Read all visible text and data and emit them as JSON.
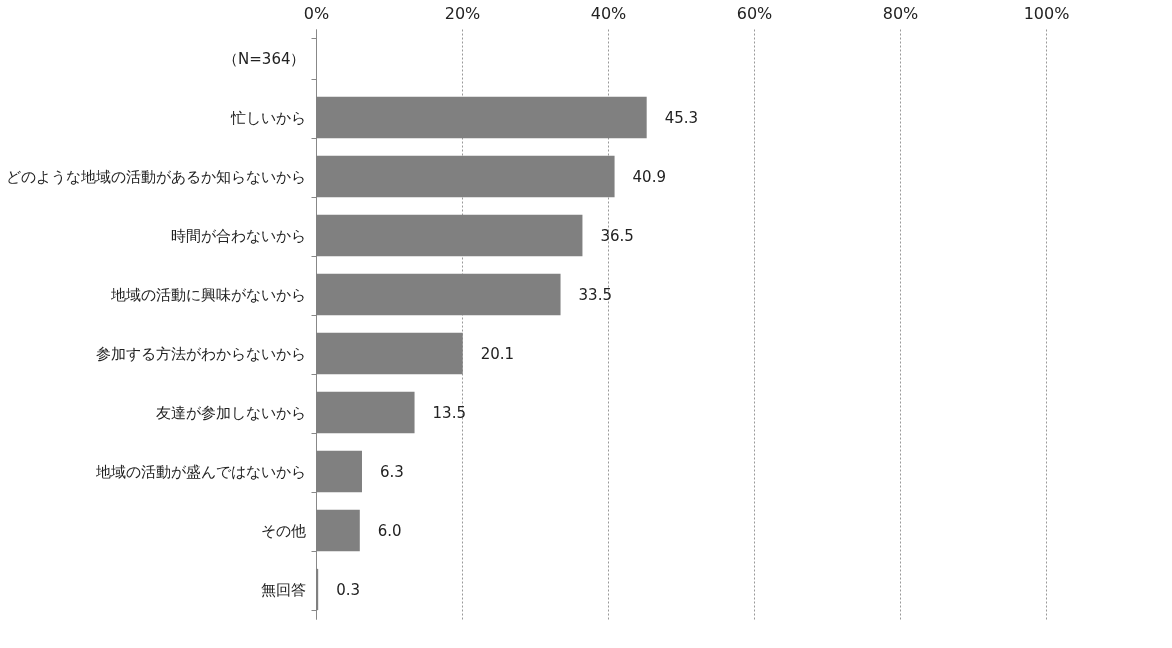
{
  "chart_data": {
    "type": "bar",
    "orientation": "horizontal",
    "categories": [
      "（N=364）",
      "忙しいから",
      "どのような地域の活動があるか知らないから",
      "時間が合わないから",
      "地域の活動に興味がないから",
      "参加する方法がわからないから",
      "友達が参加しないから",
      "地域の活動が盛んではないから",
      "その他",
      "無回答"
    ],
    "values": [
      null,
      45.3,
      40.9,
      36.5,
      33.5,
      20.1,
      13.5,
      6.3,
      6.0,
      0.3
    ],
    "value_labels": [
      null,
      "45.3",
      "40.9",
      "36.5",
      "33.5",
      "20.1",
      "13.5",
      "6.3",
      "6.0",
      "0.3"
    ],
    "color": "#808080",
    "xlim": [
      0,
      100
    ],
    "xticks": [
      {
        "value": 0,
        "label": "0%"
      },
      {
        "value": 20,
        "label": "20%"
      },
      {
        "value": 40,
        "label": "40%"
      },
      {
        "value": 60,
        "label": "60%"
      },
      {
        "value": 80,
        "label": "80%"
      },
      {
        "value": 100,
        "label": "100%"
      }
    ],
    "grid": "x"
  }
}
